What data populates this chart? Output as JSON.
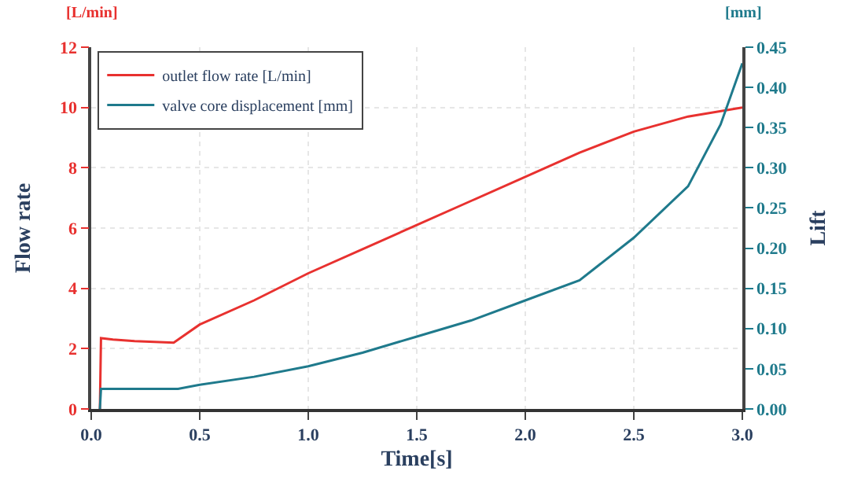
{
  "chart_data": {
    "type": "line",
    "xlabel": "Time[s]",
    "ylabel": "Flow rate",
    "y2label": "Lift",
    "annotations": [
      "[L/min]",
      "[mm]"
    ],
    "xlim": [
      0,
      3
    ],
    "xticks": [
      {
        "value": 0,
        "label": "0.0"
      },
      {
        "value": 0.5,
        "label": "0.5"
      },
      {
        "value": 1,
        "label": "1.0"
      },
      {
        "value": 1.5,
        "label": "1.5"
      },
      {
        "value": 2,
        "label": "2.0"
      },
      {
        "value": 2.5,
        "label": "2.5"
      },
      {
        "value": 3,
        "label": "3.0"
      }
    ],
    "ylim": [
      0,
      12
    ],
    "yticks": [
      0,
      2,
      4,
      6,
      8,
      10,
      12
    ],
    "y2lim": [
      0,
      0.45
    ],
    "y2ticks": [
      {
        "value": 0,
        "label": "0.00"
      },
      {
        "value": 0.05,
        "label": "0.05"
      },
      {
        "value": 0.1,
        "label": "0.10"
      },
      {
        "value": 0.15,
        "label": "0.15"
      },
      {
        "value": 0.2,
        "label": "0.20"
      },
      {
        "value": 0.25,
        "label": "0.25"
      },
      {
        "value": 0.3,
        "label": "0.30"
      },
      {
        "value": 0.35,
        "label": "0.35"
      },
      {
        "value": 0.4,
        "label": "0.40"
      },
      {
        "value": 0.45,
        "label": "0.45"
      }
    ],
    "grid": true,
    "legend": "top left",
    "marker": "none",
    "line_style": "solid",
    "series": [
      {
        "name": "outlet flow rate [L/min]",
        "color": "#e8312f",
        "x": [
          0.04,
          0.045,
          0.1,
          0.2,
          0.38,
          0.5,
          0.75,
          1.0,
          1.25,
          1.5,
          1.75,
          2.0,
          2.25,
          2.5,
          2.75,
          3.0
        ],
        "values": [
          0,
          2.35,
          2.3,
          2.25,
          2.2,
          2.8,
          3.6,
          4.5,
          5.3,
          6.1,
          6.9,
          7.7,
          8.5,
          9.2,
          9.7,
          10.0
        ]
      },
      {
        "name": "valve core displacement [mm]",
        "color": "#1f7a8c",
        "axis": "y2",
        "x": [
          0.04,
          0.045,
          0.4,
          0.5,
          0.75,
          1.0,
          1.25,
          1.5,
          1.75,
          2.0,
          2.25,
          2.5,
          2.75,
          2.9,
          3.0
        ],
        "values": [
          0,
          0.025,
          0.025,
          0.03,
          0.04,
          0.053,
          0.07,
          0.09,
          0.11,
          0.135,
          0.16,
          0.213,
          0.277,
          0.354,
          0.43
        ]
      }
    ]
  }
}
